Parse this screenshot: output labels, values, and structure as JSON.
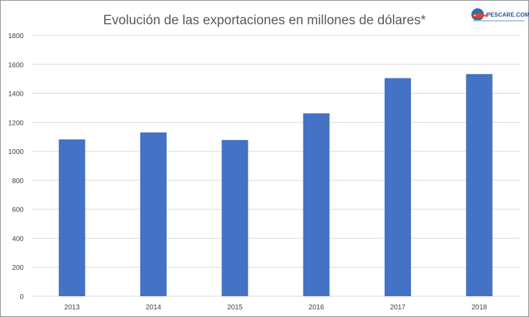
{
  "chart_data": {
    "type": "bar",
    "title": "Evolución de las exportaciones en millones de dólares*",
    "categories": [
      "2013",
      "2014",
      "2015",
      "2016",
      "2017",
      "2018"
    ],
    "series": [
      {
        "values": [
          1082,
          1130,
          1078,
          1262,
          1505,
          1533
        ]
      }
    ],
    "y_ticks": [
      "0",
      "200",
      "400",
      "600",
      "800",
      "1000",
      "1200",
      "1400",
      "1600",
      "1800"
    ],
    "ylim": [
      0,
      1800
    ],
    "grid": true,
    "legend": "none",
    "bar_color": "#4472C4",
    "grid_color": "#d9d9d9"
  },
  "logo": {
    "name": "PESCARE.COM.AR",
    "colors": {
      "primary": "#1f4e9c",
      "accent": "#e8402a"
    }
  }
}
